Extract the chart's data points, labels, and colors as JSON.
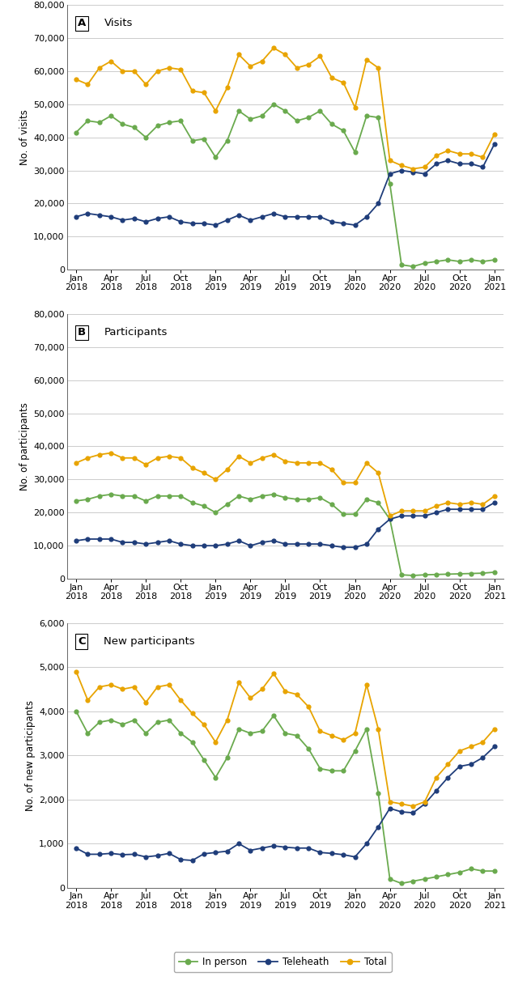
{
  "tick_indices": [
    0,
    3,
    6,
    9,
    12,
    15,
    18,
    21,
    24,
    27,
    30,
    33,
    36
  ],
  "tick_labels": [
    "Jan\n2018",
    "Apr\n2018",
    "Jul\n2018",
    "Oct\n2018",
    "Jan\n2019",
    "Apr\n2019",
    "Jul\n2019",
    "Oct\n2019",
    "Jan\n2020",
    "Apr\n2020",
    "Jul\n2020",
    "Oct\n2020",
    "Jan\n2021"
  ],
  "A_inperson": [
    41500,
    45000,
    44500,
    46500,
    44000,
    43000,
    40000,
    43500,
    44500,
    45000,
    39000,
    39500,
    34000,
    39000,
    48000,
    45500,
    46500,
    50000,
    48000,
    45000,
    46000,
    48000,
    44000,
    42000,
    35500,
    46500,
    46000,
    26000,
    1500,
    1000,
    2000,
    2500,
    3000,
    2500,
    3000,
    2500,
    3000
  ],
  "A_telehealth": [
    16000,
    17000,
    16500,
    16000,
    15000,
    15500,
    14500,
    15500,
    16000,
    14500,
    14000,
    14000,
    13500,
    15000,
    16500,
    15000,
    16000,
    17000,
    16000,
    16000,
    16000,
    16000,
    14500,
    14000,
    13500,
    16000,
    20000,
    29000,
    30000,
    29500,
    29000,
    32000,
    33000,
    32000,
    32000,
    31000,
    38000
  ],
  "A_total": [
    57500,
    56000,
    61000,
    63000,
    60000,
    60000,
    56000,
    60000,
    61000,
    60500,
    54000,
    53500,
    48000,
    55000,
    65000,
    61500,
    63000,
    67000,
    65000,
    61000,
    62000,
    64500,
    58000,
    56500,
    49000,
    63500,
    61000,
    33000,
    31500,
    30500,
    31000,
    34500,
    36000,
    35000,
    35000,
    34000,
    41000
  ],
  "B_inperson": [
    23500,
    24000,
    25000,
    25500,
    25000,
    25000,
    23500,
    25000,
    25000,
    25000,
    23000,
    22000,
    20000,
    22500,
    25000,
    24000,
    25000,
    25500,
    24500,
    24000,
    24000,
    24500,
    22500,
    19500,
    19500,
    24000,
    23000,
    18000,
    1200,
    1000,
    1200,
    1300,
    1400,
    1500,
    1600,
    1700,
    2000
  ],
  "B_telehealth": [
    11500,
    12000,
    12000,
    12000,
    11000,
    11000,
    10500,
    11000,
    11500,
    10500,
    10000,
    10000,
    10000,
    10500,
    11500,
    10000,
    11000,
    11500,
    10500,
    10500,
    10500,
    10500,
    10000,
    9500,
    9500,
    10500,
    15000,
    18000,
    19000,
    19000,
    19000,
    20000,
    21000,
    21000,
    21000,
    21000,
    23000
  ],
  "B_total": [
    35000,
    36500,
    37500,
    38000,
    36500,
    36500,
    34500,
    36500,
    37000,
    36500,
    33500,
    32000,
    30000,
    33000,
    37000,
    35000,
    36500,
    37500,
    35500,
    35000,
    35000,
    35000,
    33000,
    29000,
    29000,
    35000,
    32000,
    19000,
    20500,
    20500,
    20500,
    22000,
    23000,
    22500,
    23000,
    22500,
    25000
  ],
  "C_inperson": [
    4000,
    3500,
    3750,
    3800,
    3700,
    3800,
    3500,
    3750,
    3800,
    3500,
    3300,
    2900,
    2500,
    2950,
    3600,
    3500,
    3550,
    3900,
    3500,
    3450,
    3150,
    2700,
    2650,
    2650,
    3100,
    3600,
    2150,
    200,
    100,
    150,
    200,
    250,
    300,
    350,
    430,
    380,
    380
  ],
  "C_telehealth": [
    900,
    760,
    760,
    780,
    750,
    760,
    700,
    730,
    780,
    640,
    620,
    770,
    800,
    830,
    1000,
    850,
    900,
    950,
    920,
    900,
    900,
    800,
    780,
    750,
    700,
    1000,
    1380,
    1800,
    1720,
    1700,
    1900,
    2200,
    2500,
    2750,
    2800,
    2950,
    3200
  ],
  "C_total": [
    4900,
    4250,
    4550,
    4600,
    4500,
    4550,
    4200,
    4550,
    4600,
    4250,
    3950,
    3700,
    3300,
    3800,
    4650,
    4300,
    4500,
    4850,
    4450,
    4380,
    4100,
    3550,
    3450,
    3350,
    3500,
    4600,
    3600,
    1950,
    1900,
    1850,
    1950,
    2500,
    2800,
    3100,
    3200,
    3300,
    3600
  ],
  "color_inperson": "#6aaa4e",
  "color_telehealth": "#1f3d7a",
  "color_total": "#e8a400",
  "background_color": "#ffffff",
  "grid_color": "#cccccc",
  "panel_A_ylabel": "No. of visits",
  "panel_B_ylabel": "No. of participants",
  "panel_C_ylabel": "No. of new participants",
  "panel_A_title": "Visits",
  "panel_B_title": "Participants",
  "panel_C_title": "New participants",
  "panel_A_label": "A",
  "panel_B_label": "B",
  "panel_C_label": "C",
  "AB_ylim": [
    0,
    80000
  ],
  "AB_yticks": [
    0,
    10000,
    20000,
    30000,
    40000,
    50000,
    60000,
    70000,
    80000
  ],
  "C_ylim": [
    0,
    6000
  ],
  "C_yticks": [
    0,
    1000,
    2000,
    3000,
    4000,
    5000,
    6000
  ],
  "legend_labels": [
    "In person",
    "Teleheath",
    "Total"
  ],
  "markersize": 4.5,
  "linewidth": 1.3,
  "n_months": 37
}
